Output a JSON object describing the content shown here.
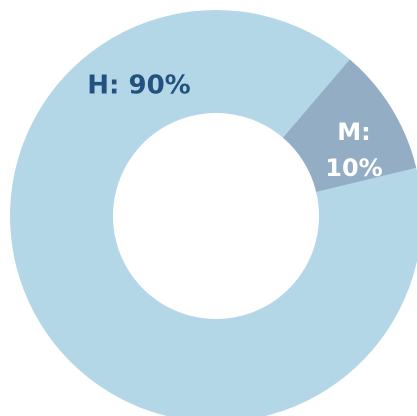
{
  "chart_data": {
    "type": "pie",
    "variant": "donut",
    "slices": [
      {
        "label": "H",
        "value": 90,
        "display": "H: 90%",
        "color": "#b4d7e8",
        "label_color": "#23527f"
      },
      {
        "label": "M",
        "value": 10,
        "display_line1": "M:",
        "display_line2": "10%",
        "color": "#93adc4",
        "label_color": "#ffffff"
      }
    ],
    "title": "",
    "legend": "none"
  }
}
